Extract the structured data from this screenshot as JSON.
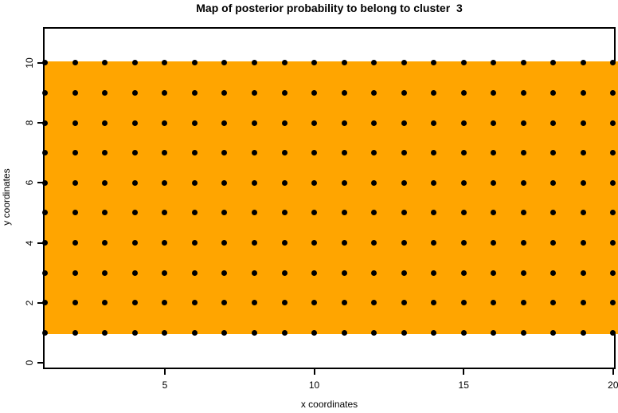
{
  "chart_data": {
    "type": "heatmap",
    "title": "Map of posterior probability to belong to cluster  3",
    "xlabel": "x coordinates",
    "ylabel": "y coordinates",
    "x_ticks": [
      5,
      10,
      15,
      20
    ],
    "y_ticks": [
      0,
      2,
      4,
      6,
      8,
      10
    ],
    "xlim": [
      1,
      20
    ],
    "ylim": [
      0,
      11
    ],
    "grid": "off",
    "legend": "none",
    "heat_region": {
      "x_from": 1,
      "x_to": 20,
      "y_from": 1,
      "y_to": 10,
      "value": "uniform posterior probability",
      "color": "#FFA500"
    },
    "grid_points": {
      "x_min": 1,
      "x_max": 20,
      "x_step": 1,
      "y_min": 1,
      "y_max": 10,
      "y_step": 1,
      "count": 200,
      "marker": "filled-circle",
      "color": "#000000"
    },
    "colors": {
      "background": "#ffffff",
      "axis": "#000000",
      "text": "#000000"
    }
  }
}
